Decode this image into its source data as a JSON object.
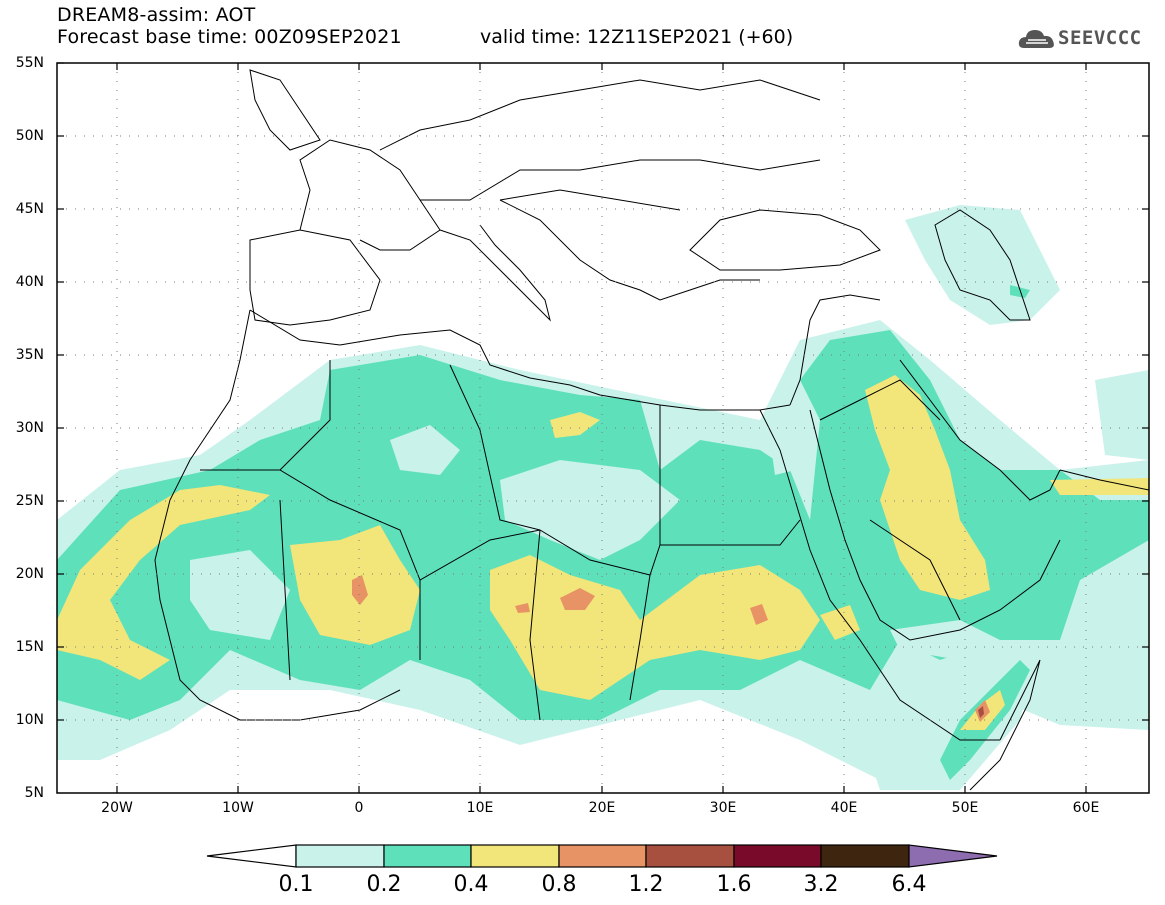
{
  "header": {
    "model_line": "DREAM8-assim: AOT",
    "base_time_line": "Forecast base time: 00Z09SEP2021",
    "valid_time_line": "valid time: 12Z11SEP2021 (+60)"
  },
  "logo": {
    "text": "SEEVCCC",
    "icon": "cloud-icon"
  },
  "map": {
    "lat_labels": [
      "55N",
      "50N",
      "45N",
      "40N",
      "35N",
      "30N",
      "25N",
      "20N",
      "15N",
      "10N",
      "5N"
    ],
    "lon_labels": [
      "20W",
      "10W",
      "0",
      "10E",
      "20E",
      "30E",
      "40E",
      "50E",
      "60E"
    ]
  },
  "colorbar": {
    "labels": [
      "0.1",
      "0.2",
      "0.4",
      "0.8",
      "1.2",
      "1.6",
      "3.2",
      "6.4"
    ],
    "colors": [
      "#ffffff",
      "#c9f2ea",
      "#5ee0bb",
      "#f2e57a",
      "#e89366",
      "#a85040",
      "#7a0a2a",
      "#3d2510",
      "#8e6cb0"
    ]
  }
}
